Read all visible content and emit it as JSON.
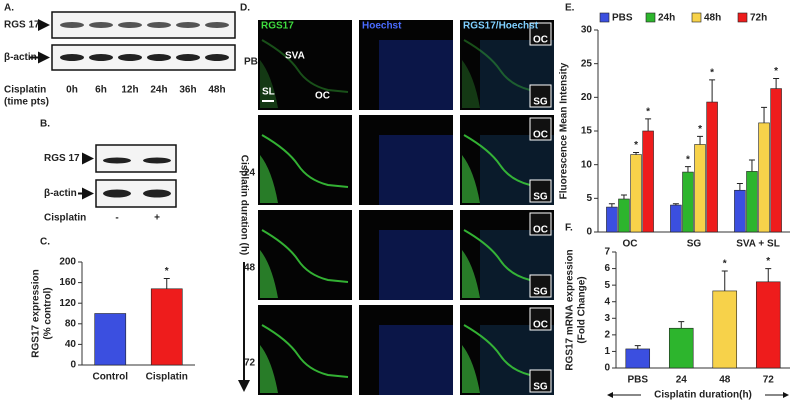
{
  "panel_a": {
    "label": "A.",
    "rows": [
      "RGS 17",
      "β-actin"
    ],
    "condition": [
      "Cisplatin",
      "(time pts)"
    ],
    "lanes": [
      "0h",
      "6h",
      "12h",
      "24h",
      "36h",
      "48h"
    ]
  },
  "panel_b": {
    "label": "B.",
    "rows": [
      "RGS 17",
      "β-actin"
    ],
    "condition": "Cisplatin",
    "lanes": [
      "-",
      "+"
    ]
  },
  "panel_d": {
    "label": "D.",
    "columns": [
      "RGS17",
      "Hoechst",
      "RGS17/Hoechst"
    ],
    "rows": [
      "PBS",
      "24",
      "48",
      "72"
    ],
    "axis_label": "Cisplatin duration (h)",
    "regions": [
      "SVA",
      "SL",
      "OC"
    ],
    "insets": [
      "OC",
      "SG"
    ]
  },
  "chart_data": [
    {
      "type": "bar",
      "label": "C.",
      "ylabel": [
        "RGS17  expression",
        "(% control)"
      ],
      "categories": [
        "Control",
        "Cisplatin"
      ],
      "values": [
        100,
        148
      ],
      "errors": [
        0,
        20
      ],
      "colors": [
        "#3b4fe0",
        "#ee1c1c"
      ],
      "stars": [
        null,
        "*"
      ],
      "ylim": [
        0,
        200
      ],
      "yticks": [
        0,
        40,
        80,
        120,
        160,
        200
      ]
    },
    {
      "type": "grouped-bar",
      "label": "E.",
      "ylabel": [
        "Fluorescence Mean Intensity"
      ],
      "categories": [
        "OC",
        "SG",
        "SVA + SL"
      ],
      "series": [
        {
          "name": "PBS",
          "color": "#3b4fe0",
          "values": [
            3.7,
            4,
            6.2
          ],
          "errors": [
            0.5,
            0.2,
            1
          ],
          "stars": [
            null,
            null,
            null
          ]
        },
        {
          "name": "24h",
          "color": "#2db52d",
          "values": [
            4.9,
            8.9,
            9
          ],
          "errors": [
            0.6,
            0.8,
            1.7
          ],
          "stars": [
            null,
            "*",
            null
          ]
        },
        {
          "name": "48h",
          "color": "#f7d24a",
          "values": [
            11.5,
            13,
            16.2
          ],
          "errors": [
            0.3,
            1.2,
            2.3
          ],
          "stars": [
            "*",
            "*",
            null
          ]
        },
        {
          "name": "72h",
          "color": "#ee1c1c",
          "values": [
            15,
            19.3,
            21.3
          ],
          "errors": [
            1.8,
            3.3,
            1.5
          ],
          "stars": [
            "*",
            "*",
            "*"
          ]
        }
      ],
      "ylim": [
        0,
        30
      ],
      "yticks": [
        0,
        5,
        10,
        15,
        20,
        25,
        30
      ]
    },
    {
      "type": "bar",
      "label": "F.",
      "ylabel": [
        "RGS17 mRNA expression",
        "(Fold Change)"
      ],
      "xlabel": "Cisplatin duration(h)",
      "categories": [
        "PBS",
        "24",
        "48",
        "72"
      ],
      "values": [
        1.15,
        2.4,
        4.65,
        5.2
      ],
      "errors": [
        0.2,
        0.4,
        1.2,
        0.8
      ],
      "colors": [
        "#3b4fe0",
        "#2db52d",
        "#f7d24a",
        "#ee1c1c"
      ],
      "stars": [
        null,
        null,
        "*",
        "*"
      ],
      "ylim": [
        0,
        7
      ],
      "yticks": [
        0,
        1,
        2,
        3,
        4,
        5,
        6,
        7
      ]
    }
  ]
}
